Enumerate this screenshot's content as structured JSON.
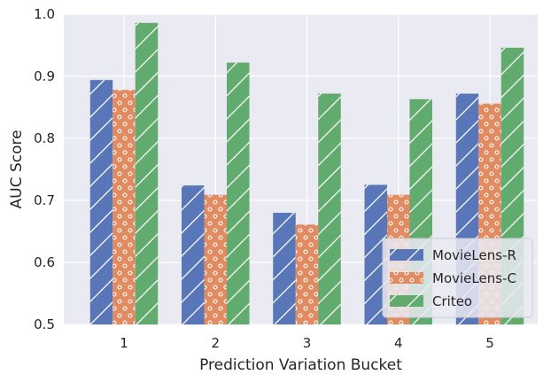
{
  "chart_data": {
    "type": "bar",
    "title": "",
    "xlabel": "Prediction Variation Bucket",
    "ylabel": "AUC Score",
    "categories": [
      "1",
      "2",
      "3",
      "4",
      "5"
    ],
    "ylim": [
      0.5,
      1.0
    ],
    "yticks": [
      0.5,
      0.6,
      0.7,
      0.8,
      0.9,
      1.0
    ],
    "ytick_labels": [
      "0.5",
      "0.6",
      "0.7",
      "0.8",
      "0.9",
      "1.0"
    ],
    "grid": true,
    "legend_position": "bottom-right",
    "series": [
      {
        "name": "MovieLens-R",
        "values": [
          0.894,
          0.724,
          0.68,
          0.725,
          0.872
        ],
        "color": "#5976b8",
        "hatch": "diagonal"
      },
      {
        "name": "MovieLens-C",
        "values": [
          0.878,
          0.709,
          0.661,
          0.709,
          0.856
        ],
        "color": "#e08b62",
        "hatch": "circles"
      },
      {
        "name": "Criteo",
        "values": [
          0.986,
          0.922,
          0.872,
          0.863,
          0.946
        ],
        "color": "#62ab6f",
        "hatch": "diagonal"
      }
    ],
    "background": "#eaeaf2"
  }
}
